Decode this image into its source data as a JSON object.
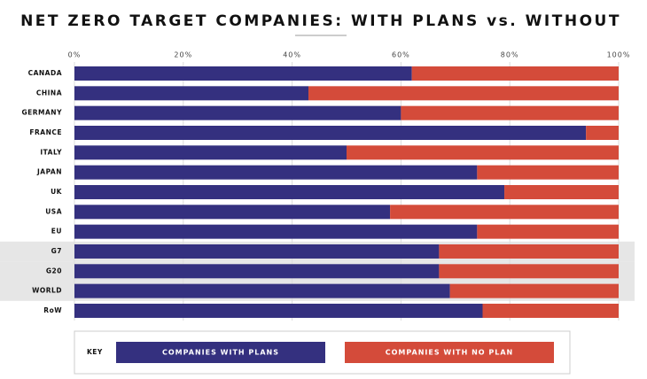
{
  "chart_data": {
    "type": "stacked-bar-horizontal",
    "title": "NET ZERO TARGET COMPANIES: WITH PLANS vs. WITHOUT",
    "categories": [
      "CANADA",
      "CHINA",
      "GERMANY",
      "FRANCE",
      "ITALY",
      "JAPAN",
      "UK",
      "USA",
      "EU",
      "G7",
      "G20",
      "WORLD",
      "RoW"
    ],
    "series": [
      {
        "name": "COMPANIES WITH PLANS",
        "color": "#34307f",
        "values": [
          62,
          43,
          60,
          94,
          50,
          74,
          79,
          58,
          74,
          67,
          67,
          69,
          75
        ]
      },
      {
        "name": "COMPANIES WITH NO PLAN",
        "color": "#d44b3a",
        "values": [
          38,
          57,
          40,
          6,
          50,
          26,
          21,
          42,
          26,
          33,
          33,
          31,
          25
        ]
      }
    ],
    "xlim": [
      0,
      100
    ],
    "xticks": [
      {
        "value": 0,
        "label": "0%"
      },
      {
        "value": 20,
        "label": "20%"
      },
      {
        "value": 40,
        "label": "40%"
      },
      {
        "value": 60,
        "label": "60%"
      },
      {
        "value": 80,
        "label": "80%"
      },
      {
        "value": 100,
        "label": "100%"
      }
    ],
    "grid": true,
    "legend_title": "KEY",
    "highlight": [
      9,
      10,
      11
    ]
  }
}
